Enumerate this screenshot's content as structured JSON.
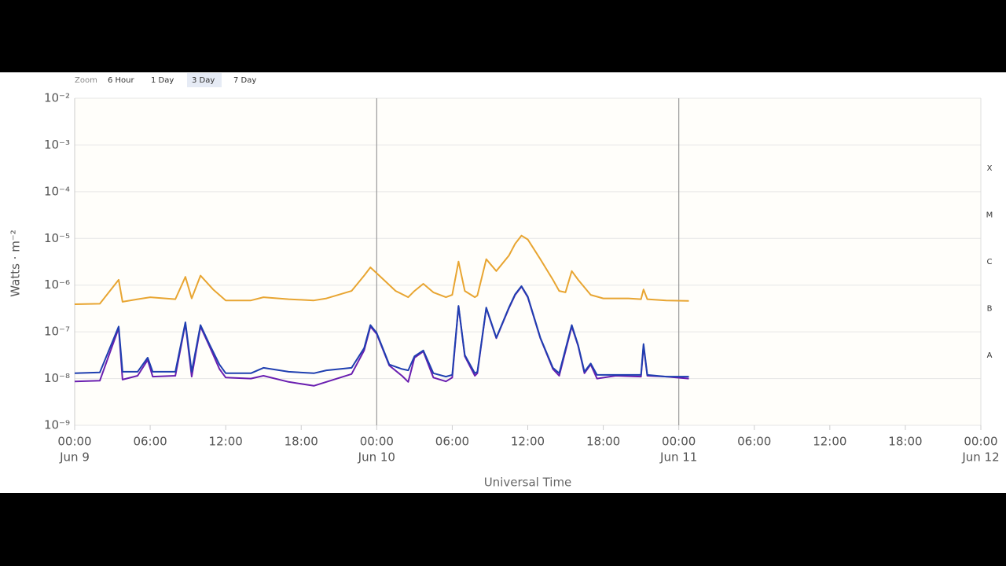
{
  "chart_data": {
    "type": "line",
    "zoom": {
      "label": "Zoom",
      "buttons": [
        "6 Hour",
        "1 Day",
        "3 Day",
        "7 Day"
      ],
      "selected_index": 2
    },
    "ylabel": "Watts · m⁻²",
    "xlabel": "Universal Time",
    "log_y": true,
    "grid": true,
    "ylim": [
      1e-09,
      0.01
    ],
    "yticks": [
      {
        "value": 1e-09,
        "label": "10⁻⁹"
      },
      {
        "value": 1e-08,
        "label": "10⁻⁸"
      },
      {
        "value": 1e-07,
        "label": "10⁻⁷"
      },
      {
        "value": 1e-06,
        "label": "10⁻⁶"
      },
      {
        "value": 1e-05,
        "label": "10⁻⁵"
      },
      {
        "value": 0.0001,
        "label": "10⁻⁴"
      },
      {
        "value": 0.001,
        "label": "10⁻³"
      },
      {
        "value": 0.01,
        "label": "10⁻²"
      }
    ],
    "y2lim": [
      1e-09,
      0.01
    ],
    "y2ticks": [
      {
        "value": 3.16e-08,
        "label": "A"
      },
      {
        "value": 3.16e-07,
        "label": "B"
      },
      {
        "value": 3.16e-06,
        "label": "C"
      },
      {
        "value": 3.16e-05,
        "label": "M"
      },
      {
        "value": 0.000316,
        "label": "X"
      }
    ],
    "xlim": [
      0,
      72
    ],
    "xticks": [
      {
        "value": 0,
        "label": "00:00"
      },
      {
        "value": 6,
        "label": "06:00"
      },
      {
        "value": 12,
        "label": "12:00"
      },
      {
        "value": 18,
        "label": "18:00"
      },
      {
        "value": 24,
        "label": "00:00"
      },
      {
        "value": 30,
        "label": "06:00"
      },
      {
        "value": 36,
        "label": "12:00"
      },
      {
        "value": 42,
        "label": "18:00"
      },
      {
        "value": 48,
        "label": "00:00"
      },
      {
        "value": 54,
        "label": "06:00"
      },
      {
        "value": 60,
        "label": "12:00"
      },
      {
        "value": 66,
        "label": "18:00"
      },
      {
        "value": 72,
        "label": "00:00"
      }
    ],
    "xdate_ticks": [
      {
        "value": 0,
        "label": "Jun 9"
      },
      {
        "value": 24,
        "label": "Jun 10"
      },
      {
        "value": 48,
        "label": "Jun 11"
      },
      {
        "value": 72,
        "label": "Jun 12"
      }
    ],
    "series": [
      {
        "color": "#e8a531",
        "x": [
          0,
          2,
          3.5,
          3.8,
          5,
          6,
          8,
          8.8,
          9.3,
          10,
          11,
          12,
          14,
          15,
          17,
          19,
          20,
          22,
          23,
          23.5,
          24.5,
          25.5,
          26.5,
          27,
          27.7,
          28.5,
          29.5,
          30,
          30.5,
          31,
          31.8,
          32,
          32.7,
          33.5,
          34.5,
          35,
          35.5,
          36,
          37,
          38,
          38.5,
          39,
          39.5,
          40,
          41,
          42,
          44,
          45,
          45.2,
          45.5,
          47,
          48.8
        ],
        "values": [
          3.9e-07,
          4e-07,
          1.3e-06,
          4.4e-07,
          5e-07,
          5.5e-07,
          5e-07,
          1.5e-06,
          5.2e-07,
          1.6e-06,
          8.1e-07,
          4.7e-07,
          4.7e-07,
          5.5e-07,
          5e-07,
          4.7e-07,
          5.2e-07,
          7.5e-07,
          1.6e-06,
          2.4e-06,
          1.35e-06,
          7.5e-07,
          5.5e-07,
          7.5e-07,
          1.07e-06,
          7e-07,
          5.5e-07,
          6.2e-07,
          3.2e-06,
          7.5e-07,
          5.5e-07,
          6e-07,
          3.6e-06,
          2e-06,
          4.3e-06,
          7.7e-06,
          1.15e-05,
          9.5e-06,
          3.6e-06,
          1.3e-06,
          7.5e-07,
          7e-07,
          2e-06,
          1.3e-06,
          6.2e-07,
          5.2e-07,
          5.2e-07,
          5e-07,
          8.1e-07,
          5e-07,
          4.7e-07,
          4.6e-07
        ]
      },
      {
        "color": "#6a1fb0",
        "x": [
          0,
          2,
          3.5,
          3.8,
          5,
          5.8,
          6.2,
          8,
          8.8,
          9.3,
          10,
          10.7,
          11.5,
          12,
          14,
          15,
          17,
          19,
          20,
          22,
          23,
          23.5,
          24,
          25,
          26,
          26.5,
          27,
          27.7,
          28.5,
          29.5,
          30,
          30.5,
          31,
          31.8,
          32,
          32.7,
          33.5,
          34.5,
          35,
          35.5,
          36,
          37,
          38,
          38.5,
          39.5,
          40,
          40.5,
          41,
          41.5,
          43,
          45,
          45.2,
          45.5,
          47,
          48.8
        ],
        "values": [
          8.7e-09,
          9e-09,
          1.2e-07,
          9.5e-09,
          1.15e-08,
          2.5e-08,
          1.1e-08,
          1.15e-08,
          1.5e-07,
          1.1e-08,
          1.3e-07,
          5e-08,
          1.6e-08,
          1.05e-08,
          1e-08,
          1.15e-08,
          8.5e-09,
          7e-09,
          8.5e-09,
          1.25e-08,
          4e-08,
          1.3e-07,
          9e-08,
          1.9e-08,
          1.15e-08,
          8.5e-09,
          2.8e-08,
          3.8e-08,
          1.05e-08,
          8.7e-09,
          1.05e-08,
          3.5e-07,
          3e-08,
          1.15e-08,
          1.3e-08,
          3.2e-07,
          7.3e-08,
          3.2e-07,
          6.2e-07,
          9.3e-07,
          5.5e-07,
          7.3e-08,
          1.6e-08,
          1.15e-08,
          1.3e-07,
          5e-08,
          1.3e-08,
          2e-08,
          1e-08,
          1.15e-08,
          1.1e-08,
          5e-08,
          1.15e-08,
          1.1e-08,
          1e-08
        ]
      },
      {
        "color": "#1f3fb0",
        "x": [
          0,
          2,
          3.5,
          3.8,
          5,
          5.8,
          6.2,
          8,
          8.8,
          9.3,
          10,
          10.7,
          11.5,
          12,
          14,
          15,
          17,
          19,
          20,
          22,
          23,
          23.5,
          24,
          25,
          26,
          26.5,
          27,
          27.7,
          28.5,
          29.5,
          30,
          30.5,
          31,
          31.8,
          32,
          32.7,
          33.5,
          34.5,
          35,
          35.5,
          36,
          37,
          38,
          38.5,
          39.5,
          40,
          40.5,
          41,
          41.5,
          43,
          45,
          45.2,
          45.5,
          47,
          48.8
        ],
        "values": [
          1.3e-08,
          1.35e-08,
          1.3e-07,
          1.4e-08,
          1.4e-08,
          2.8e-08,
          1.4e-08,
          1.4e-08,
          1.6e-07,
          1.4e-08,
          1.4e-07,
          5.5e-08,
          2e-08,
          1.3e-08,
          1.3e-08,
          1.7e-08,
          1.4e-08,
          1.3e-08,
          1.5e-08,
          1.7e-08,
          4.5e-08,
          1.4e-07,
          9.5e-08,
          2e-08,
          1.6e-08,
          1.5e-08,
          3e-08,
          4e-08,
          1.3e-08,
          1.1e-08,
          1.2e-08,
          3.6e-07,
          3.2e-08,
          1.3e-08,
          1.4e-08,
          3.3e-07,
          7.5e-08,
          3.3e-07,
          6.4e-07,
          9.5e-07,
          5.7e-07,
          7.5e-08,
          1.7e-08,
          1.3e-08,
          1.4e-07,
          5.2e-08,
          1.4e-08,
          2.1e-08,
          1.2e-08,
          1.2e-08,
          1.2e-08,
          5.5e-08,
          1.2e-08,
          1.1e-08,
          1.1e-08
        ]
      }
    ]
  }
}
